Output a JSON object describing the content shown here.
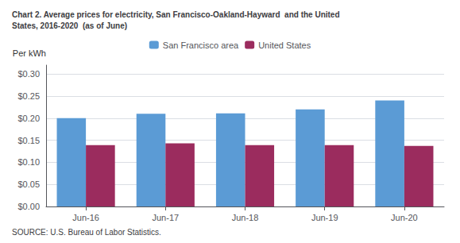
{
  "chart_data": {
    "type": "bar",
    "title": "Chart 2. Average prices for electricity, San Francisco-Oakland-Hayward  and the United\nStates, 2016-2020  (as of June)",
    "ylabel": "Per kWh",
    "annotation": "SOURCE: U.S. Bureau of Labor Statistics.",
    "categories": [
      "Jun-16",
      "Jun-17",
      "Jun-18",
      "Jun-19",
      "Jun-20"
    ],
    "series": [
      {
        "name": "San Francisco area",
        "color": "#5B9BD5",
        "values": [
          0.2,
          0.21,
          0.211,
          0.22,
          0.24
        ]
      },
      {
        "name": "United States",
        "color": "#9B2C5E",
        "values": [
          0.139,
          0.143,
          0.139,
          0.139,
          0.137
        ]
      }
    ],
    "ylim": [
      0.0,
      0.32
    ],
    "yticks": [
      {
        "value": 0.0,
        "label": "$0.00"
      },
      {
        "value": 0.05,
        "label": "$0.05"
      },
      {
        "value": 0.1,
        "label": "$0.10"
      },
      {
        "value": 0.15,
        "label": "$0.15"
      },
      {
        "value": 0.2,
        "label": "$0.20"
      },
      {
        "value": 0.25,
        "label": "$0.25"
      },
      {
        "value": 0.3,
        "label": "$0.30"
      }
    ],
    "grid": true,
    "legend": "top"
  }
}
